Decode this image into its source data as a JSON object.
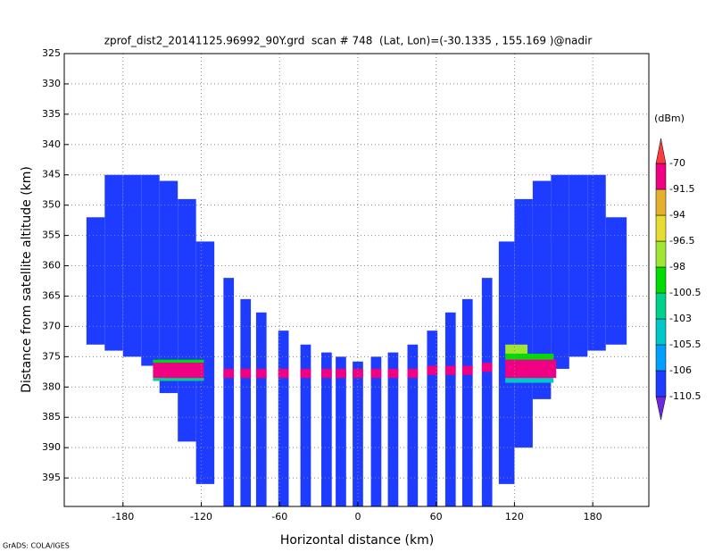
{
  "chart_data": {
    "type": "cells",
    "title": "zprof_dist2_20141125.96992_90Y.grd  scan # 748  (Lat, Lon)=(-30.1335 , 155.169 )@nadir",
    "x_label": "Horizontal distance (km)",
    "y_label": "Distance from satellite altitude (km)",
    "colorbar_label": "(dBm)",
    "credit": "GrADS: COLA/IGES",
    "xlim": [
      -225,
      223
    ],
    "ylim": [
      325,
      399.7
    ],
    "y_inverted": true,
    "xticks": [
      -180,
      -120,
      -60,
      0,
      60,
      120,
      180
    ],
    "yticks": [
      325,
      330,
      335,
      340,
      345,
      350,
      355,
      360,
      365,
      370,
      375,
      380,
      385,
      390,
      395
    ],
    "grid": true,
    "levels": [
      -110.5,
      -106,
      -105.5,
      -103,
      -100.5,
      -98,
      -96.5,
      -94,
      -91.5,
      -70
    ],
    "colors": [
      "#6e28dc",
      "#1e3cff",
      "#00a0ff",
      "#00c8c8",
      "#00d28c",
      "#00dc00",
      "#a0e632",
      "#e6dc32",
      "#e6af2d",
      "#f00082",
      "#fa3c3c"
    ],
    "cells": [
      {
        "x": [
          -208,
          -194
        ],
        "y": [
          352,
          373
        ],
        "value": -108
      },
      {
        "x": [
          -194,
          -180
        ],
        "y": [
          345,
          374
        ],
        "value": -108
      },
      {
        "x": [
          -180,
          -166
        ],
        "y": [
          345,
          375
        ],
        "value": -108
      },
      {
        "x": [
          -166,
          -152
        ],
        "y": [
          345,
          376.5
        ],
        "value": -108
      },
      {
        "x": [
          -152,
          -138
        ],
        "y": [
          346,
          381
        ],
        "value": -108
      },
      {
        "x": [
          -138,
          -124
        ],
        "y": [
          349,
          389
        ],
        "value": -108
      },
      {
        "x": [
          -124,
          -110
        ],
        "y": [
          356,
          396
        ],
        "value": -108
      },
      {
        "x": [
          -103,
          -95
        ],
        "y": [
          362,
          400
        ],
        "value": -108
      },
      {
        "x": [
          -90,
          -82
        ],
        "y": [
          365.5,
          400
        ],
        "value": -108
      },
      {
        "x": [
          -78,
          -70
        ],
        "y": [
          367.7,
          400
        ],
        "value": -108
      },
      {
        "x": [
          -61,
          -53
        ],
        "y": [
          370.7,
          400
        ],
        "value": -108
      },
      {
        "x": [
          -44,
          -36
        ],
        "y": [
          373,
          400
        ],
        "value": -108
      },
      {
        "x": [
          -28,
          -20
        ],
        "y": [
          374.3,
          400
        ],
        "value": -108
      },
      {
        "x": [
          -17,
          -9
        ],
        "y": [
          375,
          400
        ],
        "value": -108
      },
      {
        "x": [
          -4,
          4
        ],
        "y": [
          375.8,
          400
        ],
        "value": -108
      },
      {
        "x": [
          10,
          18
        ],
        "y": [
          375,
          400
        ],
        "value": -108
      },
      {
        "x": [
          23,
          31
        ],
        "y": [
          374.3,
          400
        ],
        "value": -108
      },
      {
        "x": [
          38,
          46
        ],
        "y": [
          373,
          400
        ],
        "value": -108
      },
      {
        "x": [
          53,
          61
        ],
        "y": [
          370.7,
          400
        ],
        "value": -108
      },
      {
        "x": [
          67,
          75
        ],
        "y": [
          367.7,
          400
        ],
        "value": -108
      },
      {
        "x": [
          80,
          88
        ],
        "y": [
          365.5,
          400
        ],
        "value": -108
      },
      {
        "x": [
          95,
          103
        ],
        "y": [
          362,
          400
        ],
        "value": -108
      },
      {
        "x": [
          108,
          120
        ],
        "y": [
          356,
          396
        ],
        "value": -108
      },
      {
        "x": [
          120,
          134
        ],
        "y": [
          349,
          390
        ],
        "value": -108
      },
      {
        "x": [
          134,
          148
        ],
        "y": [
          346,
          382
        ],
        "value": -108
      },
      {
        "x": [
          148,
          162
        ],
        "y": [
          345,
          377
        ],
        "value": -108
      },
      {
        "x": [
          162,
          176
        ],
        "y": [
          345,
          375
        ],
        "value": -108
      },
      {
        "x": [
          176,
          190
        ],
        "y": [
          345,
          374
        ],
        "value": -108
      },
      {
        "x": [
          190,
          206
        ],
        "y": [
          352,
          373
        ],
        "value": -108
      },
      {
        "x": [
          -157,
          -118
        ],
        "y": [
          375.5,
          376
        ],
        "value": -99
      },
      {
        "x": [
          -157,
          -118
        ],
        "y": [
          378.5,
          379
        ],
        "value": -101
      },
      {
        "x": [
          -157,
          -118
        ],
        "y": [
          376,
          378.5
        ],
        "value": -85
      },
      {
        "x": [
          -103,
          -95
        ],
        "y": [
          377,
          378.5
        ],
        "value": -85
      },
      {
        "x": [
          -90,
          -82
        ],
        "y": [
          377,
          378.5
        ],
        "value": -85
      },
      {
        "x": [
          -78,
          -70
        ],
        "y": [
          377,
          378.5
        ],
        "value": -85
      },
      {
        "x": [
          -61,
          -53
        ],
        "y": [
          377,
          378.5
        ],
        "value": -85
      },
      {
        "x": [
          -44,
          -36
        ],
        "y": [
          377,
          378.5
        ],
        "value": -85
      },
      {
        "x": [
          -28,
          -20
        ],
        "y": [
          377,
          378.5
        ],
        "value": -85
      },
      {
        "x": [
          -17,
          -9
        ],
        "y": [
          377,
          378.5
        ],
        "value": -85
      },
      {
        "x": [
          -4,
          4
        ],
        "y": [
          377,
          378.5
        ],
        "value": -85
      },
      {
        "x": [
          10,
          18
        ],
        "y": [
          377,
          378.5
        ],
        "value": -85
      },
      {
        "x": [
          23,
          31
        ],
        "y": [
          377,
          378.5
        ],
        "value": -85
      },
      {
        "x": [
          38,
          46
        ],
        "y": [
          377,
          378.5
        ],
        "value": -85
      },
      {
        "x": [
          53,
          61
        ],
        "y": [
          376.5,
          378
        ],
        "value": -85
      },
      {
        "x": [
          67,
          75
        ],
        "y": [
          376.5,
          378
        ],
        "value": -85
      },
      {
        "x": [
          80,
          88
        ],
        "y": [
          376.5,
          378
        ],
        "value": -85
      },
      {
        "x": [
          95,
          103
        ],
        "y": [
          376,
          377.5
        ],
        "value": -85
      },
      {
        "x": [
          113,
          130
        ],
        "y": [
          373,
          374.5
        ],
        "value": -97
      },
      {
        "x": [
          113,
          150
        ],
        "y": [
          374.5,
          375.5
        ],
        "value": -99
      },
      {
        "x": [
          113,
          150
        ],
        "y": [
          378.5,
          379.3
        ],
        "value": -104
      },
      {
        "x": [
          113,
          152
        ],
        "y": [
          375.5,
          378.5
        ],
        "value": -85
      }
    ]
  }
}
